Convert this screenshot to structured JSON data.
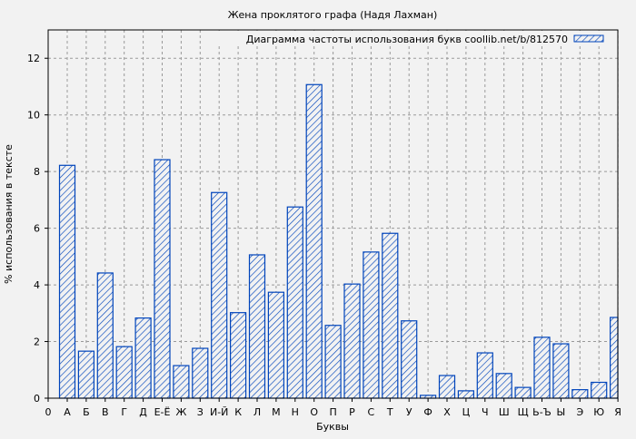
{
  "chart_data": {
    "type": "bar",
    "title": "Жена проклятого графа (Надя Лахман)",
    "xlabel": "Буквы",
    "ylabel": "% использования в тексте",
    "ylim": [
      0,
      13
    ],
    "yticks": [
      0,
      2,
      4,
      6,
      8,
      10,
      12
    ],
    "x_origin_label": "0",
    "grid": true,
    "legend_position": "top-right",
    "colors": {
      "bar_edge": "#0044bb",
      "background": "#f2f2f2",
      "grid": "#999999"
    },
    "categories": [
      "А",
      "Б",
      "В",
      "Г",
      "Д",
      "Е-Ё",
      "Ж",
      "З",
      "И-Й",
      "К",
      "Л",
      "М",
      "Н",
      "О",
      "П",
      "Р",
      "С",
      "Т",
      "У",
      "Ф",
      "Х",
      "Ц",
      "Ч",
      "Ш",
      "Щ",
      "Ь-Ъ",
      "Ы",
      "Э",
      "Ю",
      "Я"
    ],
    "series": [
      {
        "name": "Диаграмма частоты использования букв coollib.net/b/812570",
        "values": [
          8.22,
          1.66,
          4.42,
          1.82,
          2.83,
          8.42,
          1.15,
          1.76,
          7.26,
          3.02,
          5.06,
          3.74,
          6.75,
          11.07,
          2.57,
          4.03,
          5.16,
          5.82,
          2.73,
          0.1,
          0.8,
          0.26,
          1.6,
          0.87,
          0.38,
          2.15,
          1.92,
          0.3,
          0.56,
          2.85
        ]
      }
    ]
  }
}
